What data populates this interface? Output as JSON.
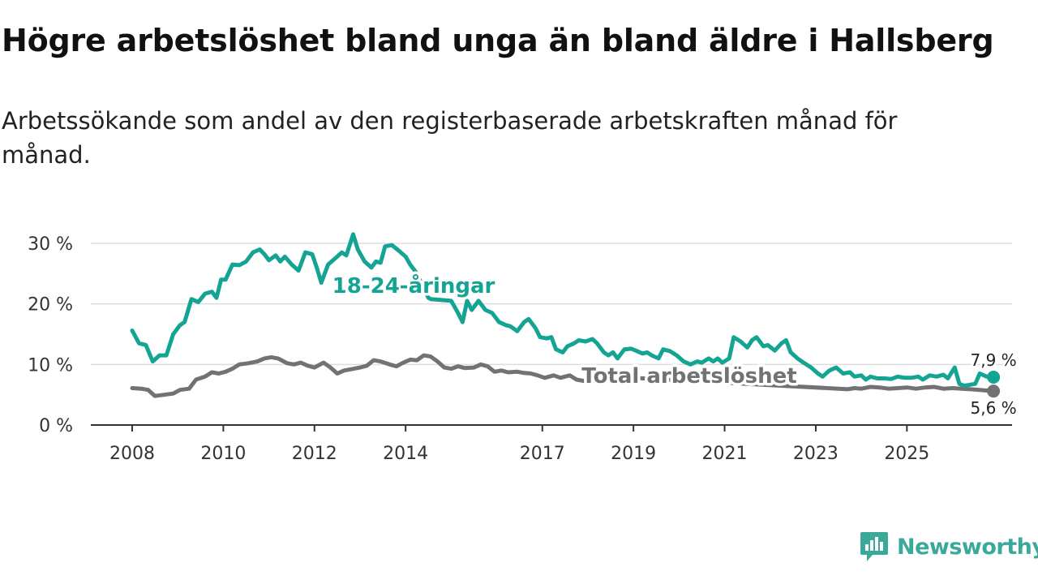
{
  "title": "Högre arbetslöshet bland unga än bland äldre i Hallsberg",
  "subtitle": "Arbetssökande som andel av den registerbaserade arbetskraften månad för månad.",
  "brand": {
    "name": "Newsworthy",
    "icon": "newsworthy-logo-icon"
  },
  "colors": {
    "youth": "#14a493",
    "total": "#727275",
    "grid": "#dddddd",
    "axis": "#333333",
    "brand": "#3aa99a"
  },
  "chart_data": {
    "type": "line",
    "title": "Högre arbetslöshet bland unga än bland äldre i Hallsberg",
    "xlabel": "",
    "ylabel": "",
    "xlim": [
      2008,
      2026.4
    ],
    "ylim": [
      0,
      30
    ],
    "grid": true,
    "y_ticks": [
      {
        "value": 0,
        "label": "0 %"
      },
      {
        "value": 10,
        "label": "10 %"
      },
      {
        "value": 20,
        "label": "20 %"
      },
      {
        "value": 30,
        "label": "30 %"
      }
    ],
    "x_ticks": [
      {
        "value": 2008,
        "label": "2008"
      },
      {
        "value": 2010,
        "label": "2010"
      },
      {
        "value": 2012,
        "label": "2012"
      },
      {
        "value": 2014,
        "label": "2014"
      },
      {
        "value": 2017,
        "label": "2017"
      },
      {
        "value": 2019,
        "label": "2019"
      },
      {
        "value": 2021,
        "label": "2021"
      },
      {
        "value": 2023,
        "label": "2023"
      },
      {
        "value": 2025,
        "label": "2025"
      }
    ],
    "series": [
      {
        "name": "18-24-åringar",
        "color": "#14a493",
        "end_label": "7,9 %",
        "points": [
          [
            2008.0,
            15.6
          ],
          [
            2008.15,
            13.5
          ],
          [
            2008.3,
            13.2
          ],
          [
            2008.45,
            10.5
          ],
          [
            2008.6,
            11.5
          ],
          [
            2008.75,
            11.5
          ],
          [
            2008.9,
            15.0
          ],
          [
            2009.05,
            16.5
          ],
          [
            2009.15,
            17.0
          ],
          [
            2009.3,
            20.8
          ],
          [
            2009.45,
            20.3
          ],
          [
            2009.6,
            21.7
          ],
          [
            2009.75,
            22.0
          ],
          [
            2009.85,
            21.0
          ],
          [
            2009.95,
            24.0
          ],
          [
            2010.05,
            24.0
          ],
          [
            2010.2,
            26.5
          ],
          [
            2010.35,
            26.4
          ],
          [
            2010.5,
            27.0
          ],
          [
            2010.65,
            28.5
          ],
          [
            2010.8,
            29.0
          ],
          [
            2010.9,
            28.2
          ],
          [
            2011.0,
            27.2
          ],
          [
            2011.15,
            28.0
          ],
          [
            2011.25,
            27.0
          ],
          [
            2011.35,
            27.8
          ],
          [
            2011.5,
            26.5
          ],
          [
            2011.65,
            25.5
          ],
          [
            2011.8,
            28.5
          ],
          [
            2011.95,
            28.2
          ],
          [
            2012.05,
            26.0
          ],
          [
            2012.15,
            23.5
          ],
          [
            2012.3,
            26.5
          ],
          [
            2012.45,
            27.5
          ],
          [
            2012.6,
            28.5
          ],
          [
            2012.7,
            28.0
          ],
          [
            2012.85,
            31.5
          ],
          [
            2012.95,
            29.0
          ],
          [
            2013.1,
            27.0
          ],
          [
            2013.25,
            26.0
          ],
          [
            2013.35,
            27.0
          ],
          [
            2013.45,
            26.8
          ],
          [
            2013.55,
            29.5
          ],
          [
            2013.7,
            29.7
          ],
          [
            2013.85,
            28.8
          ],
          [
            2014.0,
            27.8
          ],
          [
            2014.1,
            26.5
          ],
          [
            2014.25,
            25.0
          ],
          [
            2014.4,
            22.5
          ],
          [
            2014.5,
            21.0
          ],
          [
            2014.55,
            20.8
          ],
          [
            2015.0,
            20.5
          ],
          [
            2015.15,
            18.5
          ],
          [
            2015.25,
            17.0
          ],
          [
            2015.35,
            20.5
          ],
          [
            2015.45,
            19.0
          ],
          [
            2015.6,
            20.5
          ],
          [
            2015.75,
            19.0
          ],
          [
            2015.9,
            18.5
          ],
          [
            2016.05,
            17.0
          ],
          [
            2016.2,
            16.5
          ],
          [
            2016.3,
            16.3
          ],
          [
            2016.45,
            15.5
          ],
          [
            2016.6,
            17.0
          ],
          [
            2016.7,
            17.5
          ],
          [
            2016.85,
            16.0
          ],
          [
            2016.95,
            14.5
          ],
          [
            2017.1,
            14.3
          ],
          [
            2017.2,
            14.5
          ],
          [
            2017.3,
            12.5
          ],
          [
            2017.45,
            12.0
          ],
          [
            2017.55,
            13.0
          ],
          [
            2017.7,
            13.5
          ],
          [
            2017.8,
            14.0
          ],
          [
            2017.95,
            13.8
          ],
          [
            2018.1,
            14.2
          ],
          [
            2018.2,
            13.5
          ],
          [
            2018.35,
            12.0
          ],
          [
            2018.45,
            11.5
          ],
          [
            2018.55,
            12.0
          ],
          [
            2018.65,
            11.0
          ],
          [
            2018.8,
            12.5
          ],
          [
            2018.95,
            12.6
          ],
          [
            2019.05,
            12.3
          ],
          [
            2019.2,
            11.8
          ],
          [
            2019.3,
            12.0
          ],
          [
            2019.4,
            11.5
          ],
          [
            2019.55,
            11.0
          ],
          [
            2019.65,
            12.5
          ],
          [
            2019.8,
            12.2
          ],
          [
            2019.95,
            11.5
          ],
          [
            2020.1,
            10.5
          ],
          [
            2020.25,
            10.0
          ],
          [
            2020.4,
            10.5
          ],
          [
            2020.5,
            10.3
          ],
          [
            2020.65,
            11.0
          ],
          [
            2020.75,
            10.5
          ],
          [
            2020.85,
            11.0
          ],
          [
            2020.95,
            10.3
          ],
          [
            2021.1,
            11.0
          ],
          [
            2021.2,
            14.5
          ],
          [
            2021.35,
            13.8
          ],
          [
            2021.5,
            12.8
          ],
          [
            2021.6,
            14.0
          ],
          [
            2021.7,
            14.5
          ],
          [
            2021.85,
            13.0
          ],
          [
            2021.95,
            13.2
          ],
          [
            2022.1,
            12.3
          ],
          [
            2022.25,
            13.5
          ],
          [
            2022.35,
            14.0
          ],
          [
            2022.45,
            12.0
          ],
          [
            2022.6,
            11.0
          ],
          [
            2022.75,
            10.2
          ],
          [
            2022.9,
            9.5
          ],
          [
            2023.05,
            8.5
          ],
          [
            2023.15,
            8.0
          ],
          [
            2023.3,
            9.0
          ],
          [
            2023.45,
            9.5
          ],
          [
            2023.6,
            8.5
          ],
          [
            2023.75,
            8.7
          ],
          [
            2023.85,
            8.0
          ],
          [
            2024.0,
            8.2
          ],
          [
            2024.1,
            7.5
          ],
          [
            2024.2,
            8.0
          ],
          [
            2024.35,
            7.7
          ],
          [
            2024.5,
            7.7
          ],
          [
            2024.65,
            7.6
          ],
          [
            2024.8,
            8.0
          ],
          [
            2024.95,
            7.8
          ],
          [
            2025.1,
            7.8
          ],
          [
            2025.25,
            8.0
          ],
          [
            2025.35,
            7.5
          ],
          [
            2025.5,
            8.2
          ],
          [
            2025.65,
            8.0
          ],
          [
            2025.8,
            8.3
          ],
          [
            2025.9,
            7.7
          ],
          [
            2026.05,
            9.5
          ],
          [
            2026.15,
            6.8
          ],
          [
            2026.25,
            6.5
          ],
          [
            2026.35,
            6.6
          ],
          [
            2026.5,
            6.8
          ],
          [
            2026.6,
            8.5
          ],
          [
            2026.75,
            8.0
          ],
          [
            2026.9,
            7.9
          ]
        ]
      },
      {
        "name": "Total arbetslöshet",
        "color": "#727275",
        "end_label": "5,6 %",
        "points": [
          [
            2008.0,
            6.1
          ],
          [
            2008.2,
            6.0
          ],
          [
            2008.35,
            5.8
          ],
          [
            2008.5,
            4.8
          ],
          [
            2008.7,
            5.0
          ],
          [
            2008.9,
            5.2
          ],
          [
            2009.05,
            5.8
          ],
          [
            2009.25,
            6.0
          ],
          [
            2009.4,
            7.5
          ],
          [
            2009.6,
            8.0
          ],
          [
            2009.75,
            8.7
          ],
          [
            2009.9,
            8.5
          ],
          [
            2010.05,
            8.8
          ],
          [
            2010.2,
            9.3
          ],
          [
            2010.35,
            10.0
          ],
          [
            2010.55,
            10.2
          ],
          [
            2010.75,
            10.5
          ],
          [
            2010.9,
            11.0
          ],
          [
            2011.05,
            11.2
          ],
          [
            2011.2,
            11.0
          ],
          [
            2011.4,
            10.2
          ],
          [
            2011.55,
            10.0
          ],
          [
            2011.7,
            10.3
          ],
          [
            2011.85,
            9.8
          ],
          [
            2012.0,
            9.5
          ],
          [
            2012.2,
            10.3
          ],
          [
            2012.35,
            9.5
          ],
          [
            2012.5,
            8.5
          ],
          [
            2012.65,
            9.0
          ],
          [
            2012.8,
            9.2
          ],
          [
            2013.0,
            9.5
          ],
          [
            2013.15,
            9.8
          ],
          [
            2013.3,
            10.7
          ],
          [
            2013.45,
            10.5
          ],
          [
            2013.65,
            10.0
          ],
          [
            2013.8,
            9.7
          ],
          [
            2013.95,
            10.3
          ],
          [
            2014.1,
            10.8
          ],
          [
            2014.25,
            10.7
          ],
          [
            2014.4,
            11.5
          ],
          [
            2014.55,
            11.3
          ],
          [
            2014.7,
            10.5
          ],
          [
            2014.85,
            9.5
          ],
          [
            2015.0,
            9.3
          ],
          [
            2015.15,
            9.7
          ],
          [
            2015.3,
            9.4
          ],
          [
            2015.5,
            9.5
          ],
          [
            2015.65,
            10.0
          ],
          [
            2015.8,
            9.7
          ],
          [
            2015.95,
            8.8
          ],
          [
            2016.1,
            9.0
          ],
          [
            2016.25,
            8.7
          ],
          [
            2016.45,
            8.8
          ],
          [
            2016.6,
            8.6
          ],
          [
            2016.75,
            8.5
          ],
          [
            2016.9,
            8.2
          ],
          [
            2017.05,
            7.8
          ],
          [
            2017.25,
            8.2
          ],
          [
            2017.4,
            7.8
          ],
          [
            2017.6,
            8.2
          ],
          [
            2017.75,
            7.5
          ],
          [
            2017.9,
            7.3
          ],
          [
            2018.05,
            7.2
          ],
          [
            2018.2,
            7.5
          ],
          [
            2018.35,
            7.7
          ],
          [
            2018.5,
            8.2
          ],
          [
            2018.65,
            8.4
          ],
          [
            2018.8,
            8.1
          ],
          [
            2018.95,
            7.8
          ],
          [
            2023.5,
            6.0
          ],
          [
            2023.7,
            5.9
          ],
          [
            2023.85,
            6.1
          ],
          [
            2024.0,
            6.0
          ],
          [
            2024.2,
            6.3
          ],
          [
            2024.4,
            6.2
          ],
          [
            2024.6,
            6.0
          ],
          [
            2024.8,
            6.1
          ],
          [
            2025.0,
            6.2
          ],
          [
            2025.2,
            6.0
          ],
          [
            2025.4,
            6.2
          ],
          [
            2025.6,
            6.3
          ],
          [
            2025.8,
            6.0
          ],
          [
            2026.0,
            6.1
          ],
          [
            2026.2,
            6.0
          ],
          [
            2026.4,
            5.9
          ],
          [
            2026.6,
            5.8
          ],
          [
            2026.9,
            5.6
          ]
        ]
      }
    ]
  }
}
